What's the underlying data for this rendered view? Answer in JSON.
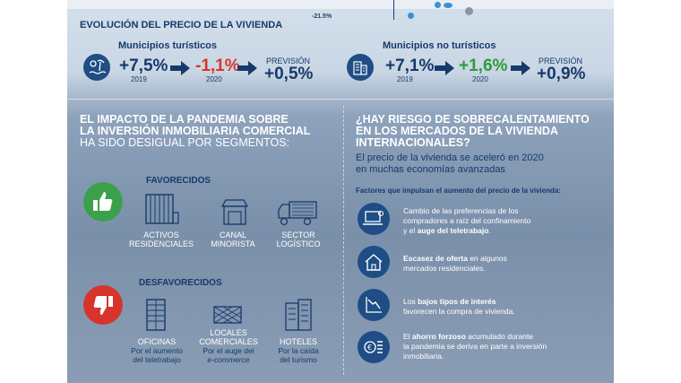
{
  "top": {
    "chart_tick": "-21.5%"
  },
  "evolucion": {
    "title": "EVOLUCIÓN DEL PRECIO DE LA VIVIENDA",
    "turisticos": {
      "label": "Municipios turísticos",
      "v2019": "+7,5%",
      "y2019": "2019",
      "v2020": "-1,1%",
      "y2020": "2020",
      "prev_label": "PREVISIÓN",
      "prev_value": "+0,5%"
    },
    "no_turisticos": {
      "label": "Municipios no turísticos",
      "v2019": "+7,1%",
      "y2019": "2019",
      "v2020": "+1,6%",
      "y2020": "2020",
      "prev_label": "PREVISIÓN",
      "prev_value": "+0,9%"
    }
  },
  "impacto": {
    "line1": "EL IMPACTO DE LA PANDEMIA SOBRE",
    "line2": "LA INVERSIÓN INMOBILIARIA COMERCIAL",
    "line3": "HA SIDO DESIGUAL POR SEGMENTOS:",
    "favorecidos": {
      "title": "FAVORECIDOS",
      "items": [
        {
          "l1": "ACTIVOS",
          "l2": "RESIDENCIALES"
        },
        {
          "l1": "CANAL",
          "l2": "MINORISTA"
        },
        {
          "l1": "SECTOR",
          "l2": "LOGÍSTICO"
        }
      ]
    },
    "desfavorecidos": {
      "title": "DESFAVORECIDOS",
      "items": [
        {
          "l1": "OFICINAS",
          "l2": "",
          "s1": "Por el aumento",
          "s2": "del teletrabajo"
        },
        {
          "l1": "LOCALES",
          "l2": "COMERCIALES",
          "s1": "Por el auge del",
          "s2": "e-commerce"
        },
        {
          "l1": "HOTELES",
          "l2": "",
          "s1": "Por la caída",
          "s2": "del turismo"
        }
      ]
    }
  },
  "riesgo": {
    "line1": "¿HAY RIESGO DE SOBRECALENTAMIENTO",
    "line2": "EN LOS MERCADOS DE LA VIVIENDA",
    "line3": "INTERNACIONALES?",
    "p1": "El precio de la vivienda se aceleró en 2020",
    "p2": "en muchas economías avanzadas",
    "factores_title": "Factores que impulsan el aumento del precio de la vivienda:",
    "f1": {
      "a": "Cambio de las preferencias de los",
      "b": "compradores a raíz del confinamiento",
      "c": "y el ",
      "d": "auge del teletrabajo",
      "e": "."
    },
    "f2": {
      "a": "Escasez de oferta",
      "b": " en algunos",
      "c": "mercados residenciales."
    },
    "f3": {
      "a": "Los ",
      "b": "bajos tipos de interés",
      "c": "favorecen la compra de vivienda."
    },
    "f4": {
      "a": "El ",
      "b": "ahorro forzoso",
      "c": " acumulado durante",
      "d": "la pandemia se deriva en parte a inversión",
      "e": "inmobiliaria."
    }
  },
  "colors": {
    "navy": "#163a6b",
    "red": "#d6342c",
    "green": "#2e9a3f",
    "thumb_up": "#3aa14a",
    "thumb_down": "#d6342c"
  }
}
